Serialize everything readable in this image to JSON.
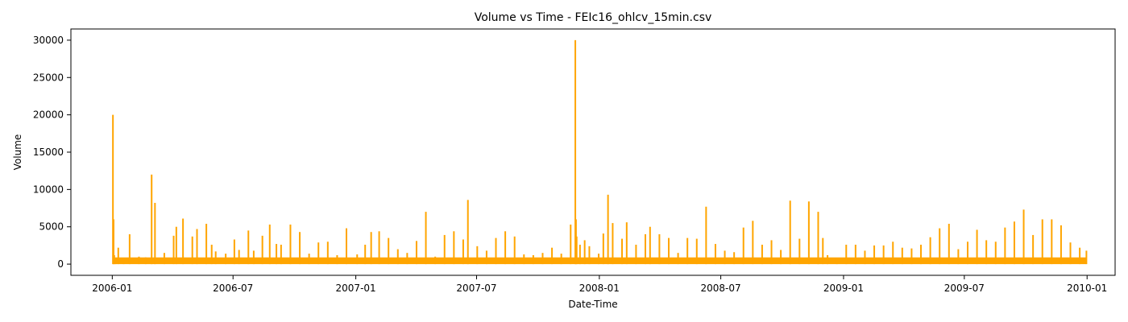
{
  "chart_data": {
    "type": "line",
    "title": "Volume vs Time - FEIc16_ohlcv_15min.csv",
    "xlabel": "Date-Time",
    "ylabel": "Volume",
    "xlim": [
      "2005-10-31",
      "2010-02-12"
    ],
    "ylim": [
      -1500,
      31500
    ],
    "x_ticks": [
      "2006-01",
      "2006-07",
      "2007-01",
      "2007-07",
      "2008-01",
      "2008-07",
      "2009-01",
      "2009-07",
      "2010-01"
    ],
    "y_ticks": [
      0,
      5000,
      10000,
      15000,
      20000,
      25000,
      30000
    ],
    "grid": false,
    "legend": "none",
    "line_color": "#FFA500",
    "series": [
      {
        "x": [
          "2006-01-02",
          "2006-01-03",
          "2006-01-04",
          "2006-01-06",
          "2006-01-10",
          "2006-01-18",
          "2006-01-27",
          "2006-02-10",
          "2006-02-20",
          "2006-03-01",
          "2006-03-06",
          "2006-03-20",
          "2006-04-03",
          "2006-04-07",
          "2006-04-17",
          "2006-05-01",
          "2006-05-08",
          "2006-05-22",
          "2006-05-30",
          "2006-06-05",
          "2006-06-20",
          "2006-07-03",
          "2006-07-10",
          "2006-07-24",
          "2006-08-01",
          "2006-08-14",
          "2006-08-25",
          "2006-09-04",
          "2006-09-11",
          "2006-09-25",
          "2006-10-09",
          "2006-10-23",
          "2006-11-06",
          "2006-11-20",
          "2006-12-04",
          "2006-12-18",
          "2007-01-03",
          "2007-01-15",
          "2007-01-24",
          "2007-02-05",
          "2007-02-19",
          "2007-03-05",
          "2007-03-19",
          "2007-04-02",
          "2007-04-16",
          "2007-04-30",
          "2007-05-14",
          "2007-05-28",
          "2007-06-11",
          "2007-06-18",
          "2007-07-02",
          "2007-07-16",
          "2007-07-30",
          "2007-08-13",
          "2007-08-27",
          "2007-09-10",
          "2007-09-24",
          "2007-10-08",
          "2007-10-22",
          "2007-11-05",
          "2007-11-19",
          "2007-11-26",
          "2007-11-27",
          "2007-11-28",
          "2007-12-03",
          "2007-12-10",
          "2007-12-17",
          "2007-12-31",
          "2008-01-07",
          "2008-01-14",
          "2008-01-21",
          "2008-02-04",
          "2008-02-11",
          "2008-02-25",
          "2008-03-10",
          "2008-03-17",
          "2008-03-31",
          "2008-04-14",
          "2008-04-28",
          "2008-05-12",
          "2008-05-26",
          "2008-06-09",
          "2008-06-23",
          "2008-07-07",
          "2008-07-21",
          "2008-08-04",
          "2008-08-18",
          "2008-09-01",
          "2008-09-15",
          "2008-09-29",
          "2008-10-13",
          "2008-10-27",
          "2008-11-10",
          "2008-11-24",
          "2008-12-01",
          "2008-12-08",
          "2008-12-22",
          "2009-01-05",
          "2009-01-19",
          "2009-02-02",
          "2009-02-16",
          "2009-03-02",
          "2009-03-16",
          "2009-03-30",
          "2009-04-13",
          "2009-04-27",
          "2009-05-11",
          "2009-05-25",
          "2009-06-08",
          "2009-06-22",
          "2009-07-06",
          "2009-07-20",
          "2009-08-03",
          "2009-08-17",
          "2009-08-31",
          "2009-09-14",
          "2009-09-28",
          "2009-10-12",
          "2009-10-26",
          "2009-11-09",
          "2009-11-23",
          "2009-12-07",
          "2009-12-21",
          "2009-12-31"
        ],
        "values": [
          20000,
          6000,
          1200,
          300,
          2200,
          800,
          4000,
          1000,
          900,
          12000,
          8200,
          1500,
          3800,
          5000,
          6100,
          3700,
          4700,
          5400,
          2600,
          1700,
          1400,
          3300,
          1900,
          4500,
          1800,
          3800,
          5300,
          2700,
          2600,
          5300,
          4300,
          1400,
          2900,
          3000,
          1200,
          4800,
          1300,
          2600,
          4300,
          4400,
          3500,
          2000,
          1500,
          3100,
          7000,
          1000,
          3900,
          4400,
          3300,
          8600,
          2400,
          1800,
          3500,
          4400,
          3700,
          1300,
          1200,
          1500,
          2200,
          1400,
          5300,
          30000,
          6000,
          3700,
          2600,
          3200,
          2400,
          1400,
          4100,
          9300,
          5500,
          3400,
          5600,
          2600,
          4000,
          5000,
          4000,
          3500,
          1500,
          3500,
          3400,
          7700,
          2700,
          1800,
          1600,
          4900,
          5800,
          2600,
          3200,
          1900,
          8500,
          3400,
          8400,
          7000,
          3500,
          1200,
          800,
          2600,
          2600,
          1800,
          2500,
          2500,
          3000,
          2200,
          2100,
          2600,
          3600,
          4800,
          5400,
          2000,
          3000,
          4600,
          3200,
          3000,
          4900,
          5700,
          7300,
          3900,
          6000,
          6000,
          5200,
          2900,
          2200,
          1800
        ]
      }
    ]
  }
}
